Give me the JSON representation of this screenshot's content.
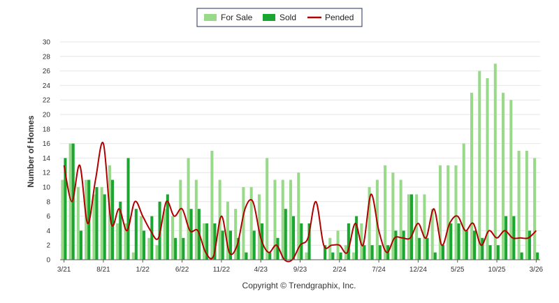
{
  "chart_data": {
    "type": "bar",
    "ylabel": "Number of Homes",
    "ylim": [
      0,
      30
    ],
    "y_ticks": [
      0,
      2,
      4,
      6,
      8,
      10,
      12,
      14,
      16,
      18,
      20,
      22,
      24,
      26,
      28,
      30
    ],
    "x_tick_labels": [
      {
        "label": "3/21",
        "index": 0
      },
      {
        "label": "8/21",
        "index": 5
      },
      {
        "label": "1/22",
        "index": 10
      },
      {
        "label": "6/22",
        "index": 15
      },
      {
        "label": "11/22",
        "index": 20
      },
      {
        "label": "4/23",
        "index": 25
      },
      {
        "label": "9/23",
        "index": 30
      },
      {
        "label": "2/24",
        "index": 35
      },
      {
        "label": "7/24",
        "index": 40
      },
      {
        "label": "12/24",
        "index": 45
      },
      {
        "label": "5/25",
        "index": 50
      },
      {
        "label": "10/25",
        "index": 55
      },
      {
        "label": "3/26",
        "index": 60
      }
    ],
    "categories": [
      "3/21",
      "4/21",
      "5/21",
      "6/21",
      "7/21",
      "8/21",
      "9/21",
      "10/21",
      "11/21",
      "12/21",
      "1/22",
      "2/22",
      "3/22",
      "4/22",
      "5/22",
      "6/22",
      "7/22",
      "8/22",
      "9/22",
      "10/22",
      "11/22",
      "12/22",
      "1/23",
      "2/23",
      "3/23",
      "4/23",
      "5/23",
      "6/23",
      "7/23",
      "8/23",
      "9/23",
      "10/23",
      "11/23",
      "12/23",
      "1/24",
      "2/24",
      "3/24",
      "4/24",
      "5/24",
      "6/24",
      "7/24",
      "8/24",
      "9/24",
      "10/24",
      "11/24",
      "12/24",
      "1/25",
      "2/25",
      "3/25",
      "4/25",
      "5/25",
      "6/25",
      "7/25",
      "8/25",
      "9/25",
      "10/25",
      "11/25",
      "12/25",
      "1/26",
      "2/26",
      "3/26"
    ],
    "series": [
      {
        "name": "For Sale",
        "kind": "bar",
        "color": "#99d98a",
        "values": [
          11,
          16,
          10,
          11,
          9,
          10,
          13,
          5,
          5,
          1,
          6,
          3,
          2,
          7,
          6,
          11,
          14,
          11,
          5,
          15,
          11,
          8,
          7,
          10,
          10,
          9,
          14,
          11,
          11,
          11,
          12,
          1,
          0,
          0,
          3,
          4,
          2,
          1,
          5,
          10,
          11,
          13,
          12,
          11,
          9,
          9,
          9,
          7,
          13,
          13,
          13,
          16,
          23,
          26,
          25,
          27,
          23,
          22,
          15,
          15,
          14
        ]
      },
      {
        "name": "Sold",
        "kind": "bar",
        "color": "#1aa631",
        "values": [
          14,
          16,
          4,
          11,
          10,
          9,
          11,
          8,
          14,
          7,
          4,
          6,
          8,
          9,
          3,
          3,
          7,
          7,
          5,
          5,
          4,
          4,
          3,
          1,
          4,
          5,
          1,
          3,
          7,
          6,
          5,
          5,
          0,
          2,
          1,
          1,
          5,
          6,
          2,
          2,
          2,
          2,
          4,
          4,
          9,
          3,
          3,
          1,
          2,
          5,
          5,
          4,
          4,
          3,
          2,
          2,
          6,
          6,
          1,
          4,
          1
        ]
      },
      {
        "name": "Pended",
        "kind": "line",
        "color": "#b00000",
        "values": [
          13,
          8,
          13,
          5,
          11,
          16,
          5,
          7,
          4,
          8,
          6,
          4,
          3,
          8,
          6,
          7,
          4,
          4,
          1,
          0.5,
          6,
          1,
          2,
          7,
          8,
          3,
          1,
          2,
          0,
          0,
          2,
          3,
          8,
          2,
          2,
          2,
          1,
          5,
          2,
          9,
          4,
          1,
          3,
          3,
          3,
          5,
          3,
          7,
          2,
          5,
          6,
          4,
          5,
          2,
          4,
          3,
          4,
          3,
          3,
          3,
          4
        ]
      }
    ],
    "legend": {
      "position": "top-center"
    },
    "grid": true
  },
  "footer": {
    "copyright": "Copyright © Trendgraphix, Inc."
  }
}
